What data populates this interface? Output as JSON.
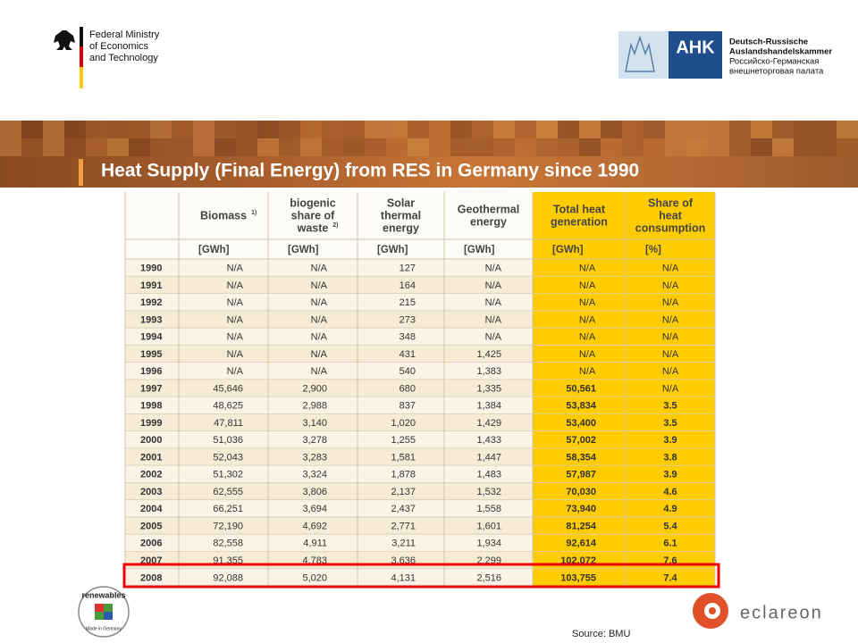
{
  "header": {
    "ministry": [
      "Federal Ministry",
      "of Economics",
      "and Technology"
    ],
    "ahk": {
      "logo": "AHK",
      "lines": [
        "Deutsch-Russische",
        "Auslandshandelskammer",
        "Российско-Германская",
        "внешнеторговая палата"
      ]
    }
  },
  "title": "Heat Supply (Final Energy) from RES in Germany since 1990",
  "table": {
    "columns": [
      {
        "lines": [
          "Biomass"
        ],
        "note": "1)",
        "unit": "[GWh]"
      },
      {
        "lines": [
          "biogenic",
          "share of",
          "waste"
        ],
        "note": "2)",
        "unit": "[GWh]"
      },
      {
        "lines": [
          "Solar",
          "thermal",
          "energy"
        ],
        "unit": "[GWh]"
      },
      {
        "lines": [
          "Geothermal",
          "energy"
        ],
        "unit": "[GWh]"
      },
      {
        "lines": [
          "Total heat",
          "generation"
        ],
        "unit": "[GWh]"
      },
      {
        "lines": [
          "Share of",
          "heat",
          "consumption"
        ],
        "unit": "[%]"
      }
    ],
    "rows": [
      [
        "1990",
        "N/A",
        "N/A",
        "127",
        "N/A",
        "N/A",
        "N/A"
      ],
      [
        "1991",
        "N/A",
        "N/A",
        "164",
        "N/A",
        "N/A",
        "N/A"
      ],
      [
        "1992",
        "N/A",
        "N/A",
        "215",
        "N/A",
        "N/A",
        "N/A"
      ],
      [
        "1993",
        "N/A",
        "N/A",
        "273",
        "N/A",
        "N/A",
        "N/A"
      ],
      [
        "1994",
        "N/A",
        "N/A",
        "348",
        "N/A",
        "N/A",
        "N/A"
      ],
      [
        "1995",
        "N/A",
        "N/A",
        "431",
        "1,425",
        "N/A",
        "N/A"
      ],
      [
        "1996",
        "N/A",
        "N/A",
        "540",
        "1,383",
        "N/A",
        "N/A"
      ],
      [
        "1997",
        "45,646",
        "2,900",
        "680",
        "1,335",
        "50,561",
        "N/A"
      ],
      [
        "1998",
        "48,625",
        "2,988",
        "837",
        "1,384",
        "53,834",
        "3.5"
      ],
      [
        "1999",
        "47,811",
        "3,140",
        "1,020",
        "1,429",
        "53,400",
        "3.5"
      ],
      [
        "2000",
        "51,036",
        "3,278",
        "1,255",
        "1,433",
        "57,002",
        "3.9"
      ],
      [
        "2001",
        "52,043",
        "3,283",
        "1,581",
        "1,447",
        "58,354",
        "3.8"
      ],
      [
        "2002",
        "51,302",
        "3,324",
        "1,878",
        "1,483",
        "57,987",
        "3.9"
      ],
      [
        "2003",
        "62,555",
        "3,806",
        "2,137",
        "1,532",
        "70,030",
        "4.6"
      ],
      [
        "2004",
        "66,251",
        "3,694",
        "2,437",
        "1,558",
        "73,940",
        "4.9"
      ],
      [
        "2005",
        "72,190",
        "4,692",
        "2,771",
        "1,601",
        "81,254",
        "5.4"
      ],
      [
        "2006",
        "82,558",
        "4,911",
        "3,211",
        "1,934",
        "92,614",
        "6.1"
      ],
      [
        "2007",
        "91,355",
        "4,783",
        "3,636",
        "2,299",
        "102,072",
        "7.6"
      ],
      [
        "2008",
        "92,088",
        "5,020",
        "4,131",
        "2,516",
        "103,755",
        "7.4"
      ]
    ]
  },
  "source": "Source: BMU",
  "footer": {
    "renewables": "renewables",
    "made": "Made in Germany",
    "eclareon": "eclareon"
  }
}
